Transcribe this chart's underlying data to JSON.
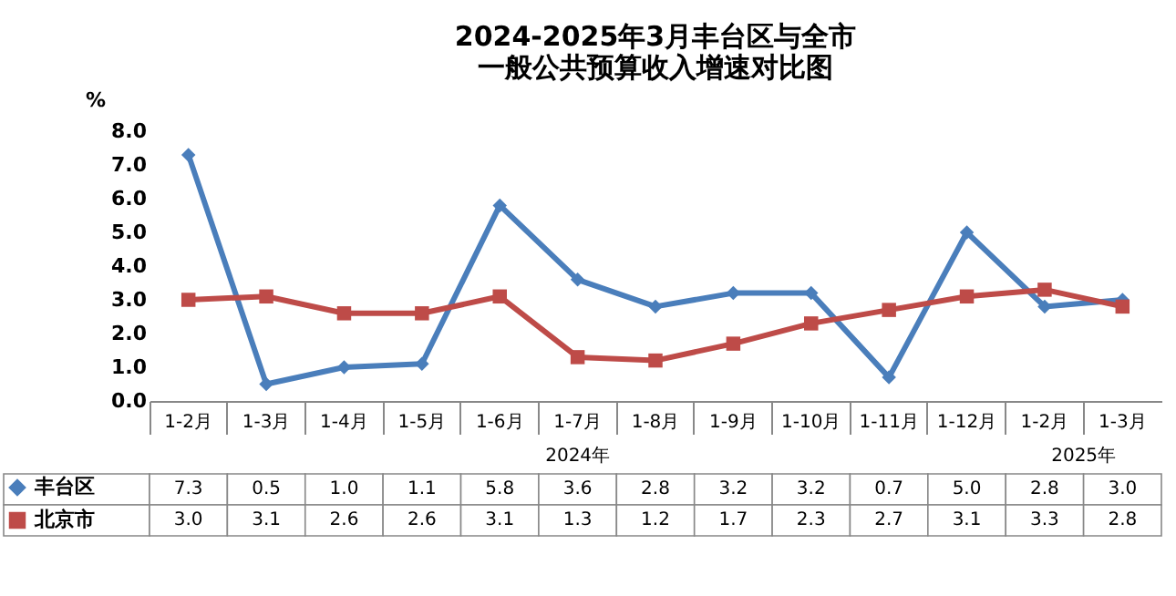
{
  "chart_data": {
    "type": "line",
    "title": [
      "2024-2025年3月丰台区与全市",
      "一般公共预算收入增速对比图"
    ],
    "ylabel": "%",
    "categories": [
      "1-2月",
      "1-3月",
      "1-4月",
      "1-5月",
      "1-6月",
      "1-7月",
      "1-8月",
      "1-9月",
      "1-10月",
      "1-11月",
      "1-12月",
      "1-2月",
      "1-3月"
    ],
    "series": [
      {
        "name": "丰台区",
        "color": "#4a7ebb",
        "marker": "diamond",
        "values": [
          7.3,
          0.5,
          1.0,
          1.1,
          5.8,
          3.6,
          2.8,
          3.2,
          3.2,
          0.7,
          5.0,
          2.8,
          3.0
        ],
        "value_labels": [
          "7.3",
          "0.5",
          "1.0",
          "1.1",
          "5.8",
          "3.6",
          "2.8",
          "3.2",
          "3.2",
          "0.7",
          "5.0",
          "2.8",
          "3.0"
        ]
      },
      {
        "name": "北京市",
        "color": "#be4b48",
        "marker": "square",
        "values": [
          3.0,
          3.1,
          2.6,
          2.6,
          3.1,
          1.3,
          1.2,
          1.7,
          2.3,
          2.7,
          3.1,
          3.3,
          2.8
        ],
        "value_labels": [
          "3.0",
          "3.1",
          "2.6",
          "2.6",
          "3.1",
          "1.3",
          "1.2",
          "1.7",
          "2.3",
          "2.7",
          "3.1",
          "3.3",
          "2.8"
        ]
      }
    ],
    "ylim": [
      0,
      8
    ],
    "yticks": [
      {
        "value": 0,
        "label": "0.0"
      },
      {
        "value": 1,
        "label": "1.0"
      },
      {
        "value": 2,
        "label": "2.0"
      },
      {
        "value": 3,
        "label": "3.0"
      },
      {
        "value": 4,
        "label": "4.0"
      },
      {
        "value": 5,
        "label": "5.0"
      },
      {
        "value": 6,
        "label": "6.0"
      },
      {
        "value": 7,
        "label": "7.0"
      },
      {
        "value": 8,
        "label": "8.0"
      }
    ],
    "annotations": [
      "2024年",
      "2025年"
    ],
    "legend": "bottom left",
    "grid": false,
    "line_style": "solid"
  }
}
